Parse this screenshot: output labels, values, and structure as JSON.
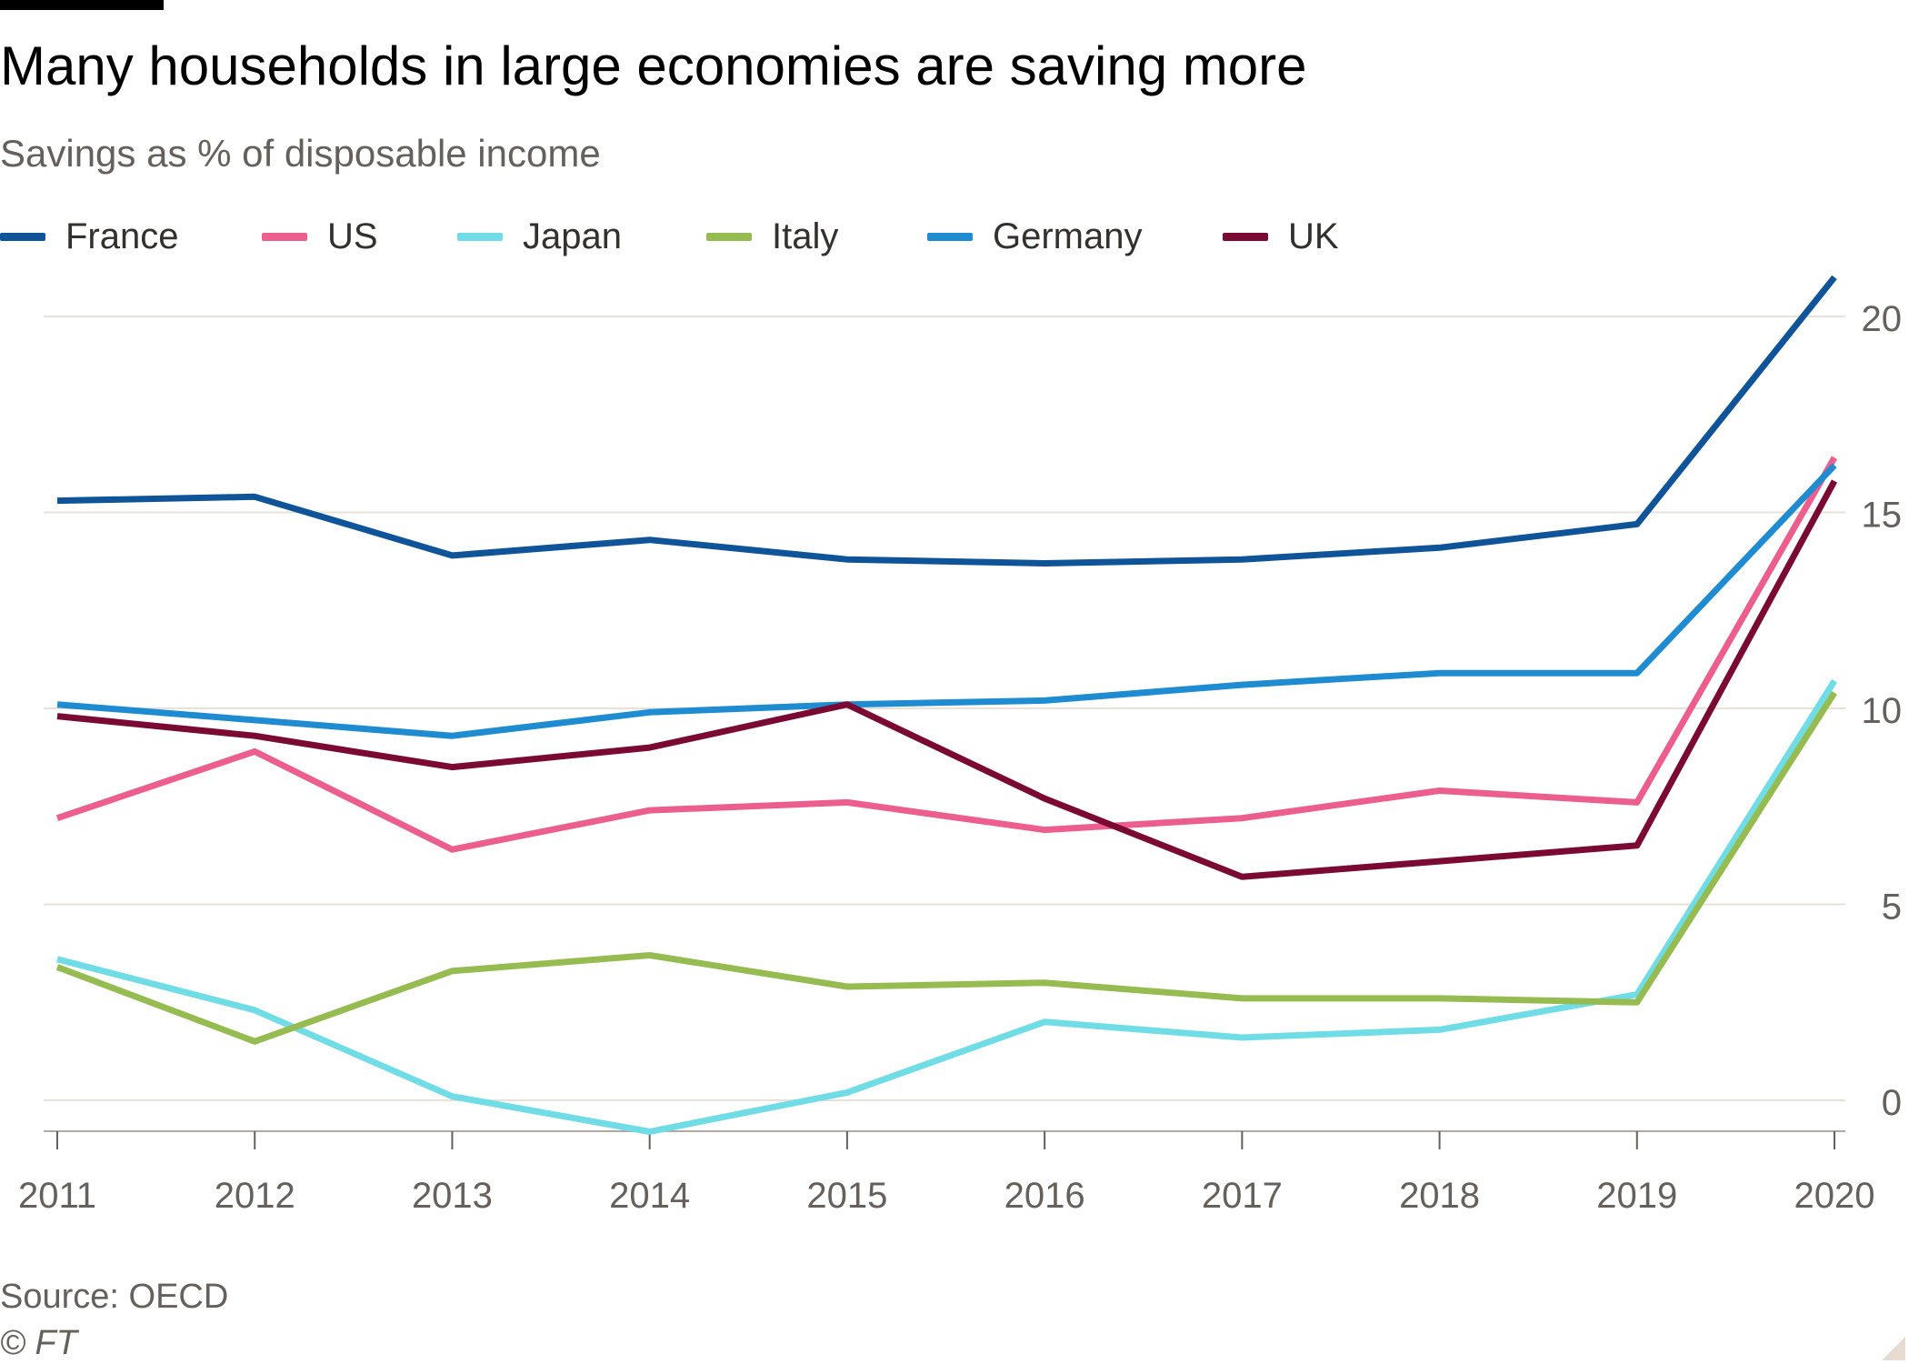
{
  "title": "Many households in large economies are saving more",
  "subtitle": "Savings as % of disposable income",
  "source": "Source: OECD",
  "copyright": "© FT",
  "chart_data": {
    "type": "line",
    "title": "Many households in large economies are saving more",
    "subtitle": "Savings as % of disposable income",
    "x": [
      "2011",
      "2012",
      "2013",
      "2014",
      "2015",
      "2016",
      "2017",
      "2018",
      "2019",
      "2020"
    ],
    "y_ticks": [
      0,
      5,
      10,
      15,
      20
    ],
    "ylim": [
      -0.8,
      21.5
    ],
    "y_axis_side": "right",
    "grid": "horizontal",
    "legend_position": "top-left",
    "series": [
      {
        "name": "France",
        "color": "#0f5499",
        "values": [
          15.3,
          15.4,
          13.9,
          14.3,
          13.8,
          13.7,
          13.8,
          14.1,
          14.7,
          21.0
        ]
      },
      {
        "name": "US",
        "color": "#eb5e8d",
        "values": [
          7.2,
          8.9,
          6.4,
          7.4,
          7.6,
          6.9,
          7.2,
          7.9,
          7.6,
          16.4
        ]
      },
      {
        "name": "Japan",
        "color": "#70dce6",
        "values": [
          3.6,
          2.3,
          0.1,
          -0.8,
          0.2,
          2.0,
          1.6,
          1.8,
          2.7,
          10.7
        ]
      },
      {
        "name": "Italy",
        "color": "#96bc51",
        "values": [
          3.4,
          1.5,
          3.3,
          3.7,
          2.9,
          3.0,
          2.6,
          2.6,
          2.5,
          10.4
        ]
      },
      {
        "name": "Germany",
        "color": "#1f8cd2",
        "values": [
          10.1,
          9.7,
          9.3,
          9.9,
          10.1,
          10.2,
          10.6,
          10.9,
          10.9,
          16.2
        ]
      },
      {
        "name": "UK",
        "color": "#7a0a34",
        "values": [
          9.8,
          9.3,
          8.5,
          9.0,
          10.1,
          7.7,
          5.7,
          6.1,
          6.5,
          15.8
        ]
      }
    ]
  }
}
